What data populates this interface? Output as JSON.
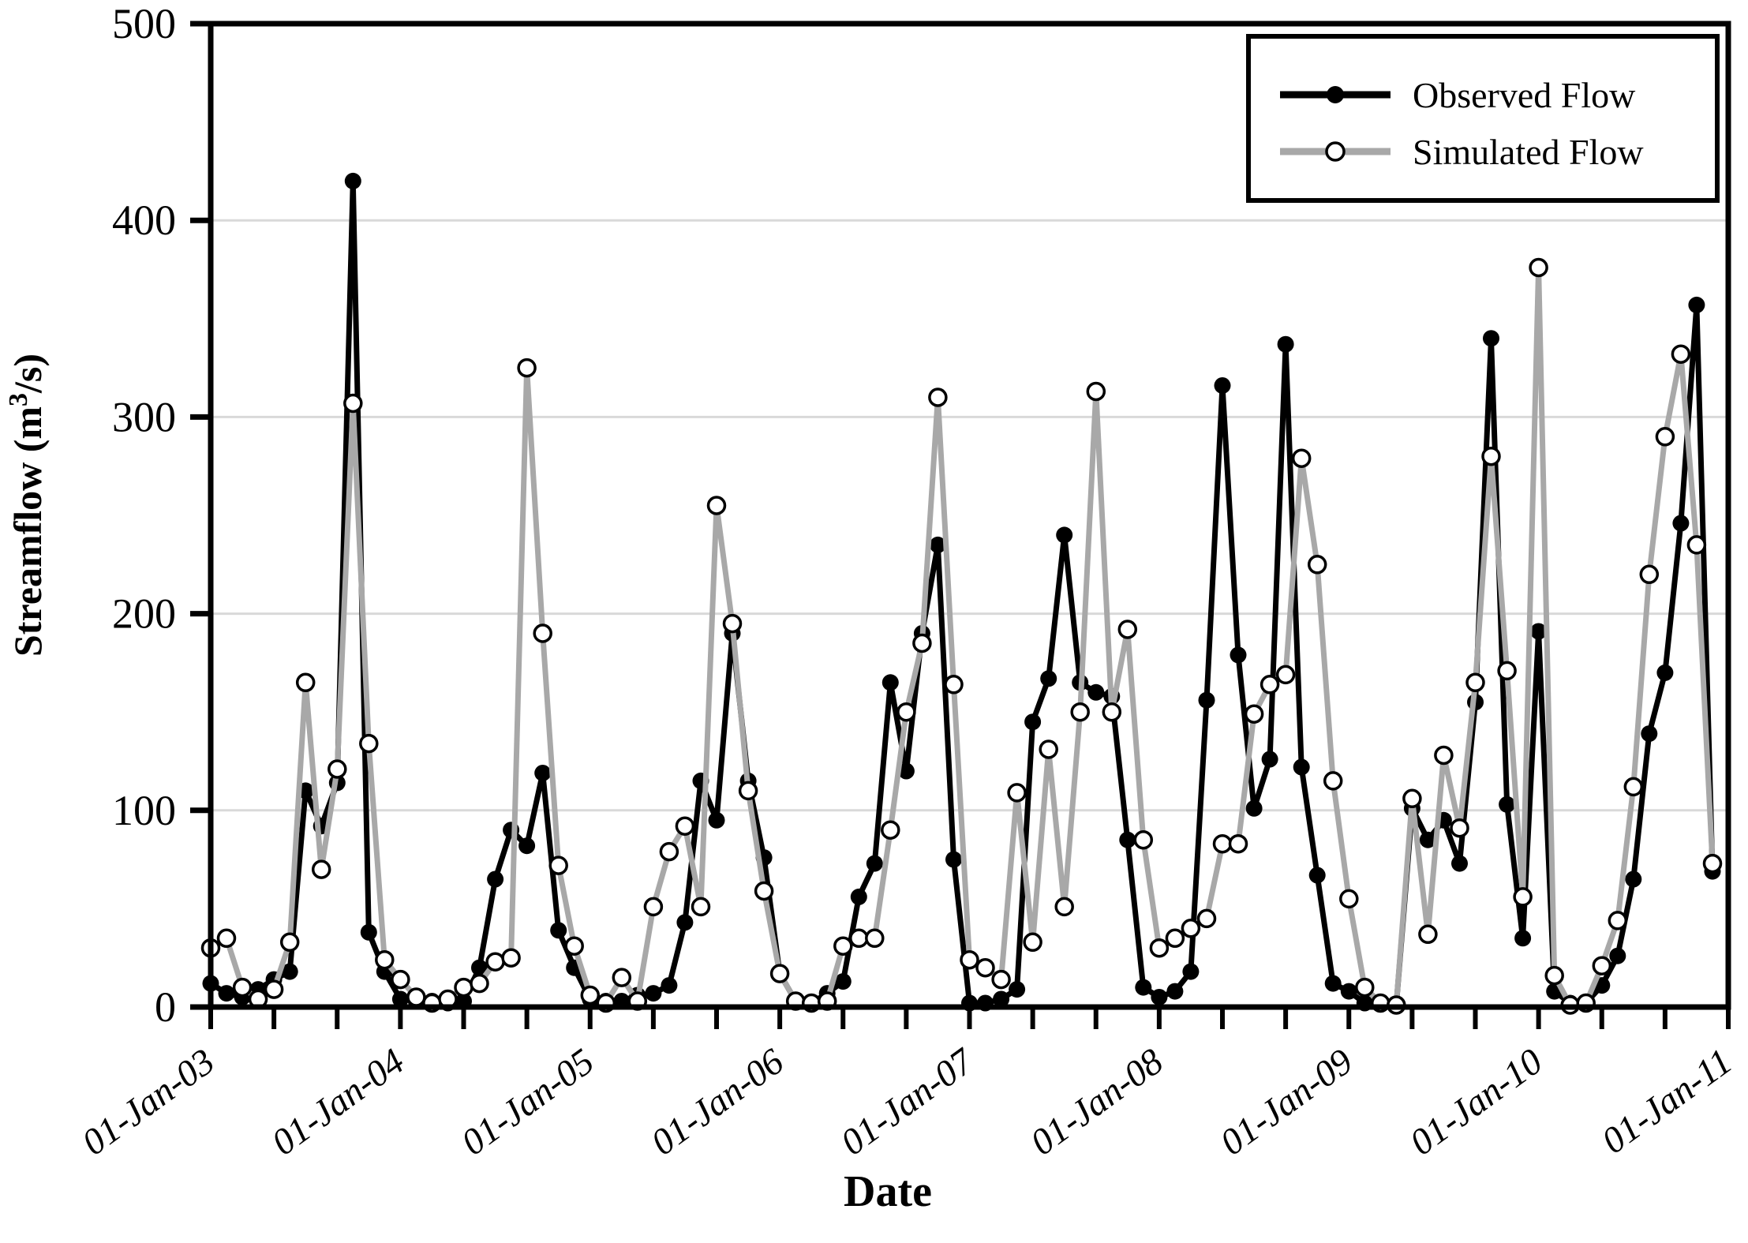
{
  "chart_data": {
    "type": "line",
    "title": "",
    "xlabel": "Date",
    "ylabel_prefix": "Streamflow (m",
    "ylabel_sup": "3",
    "ylabel_suffix": "/s)",
    "ylabel_full": "Streamflow (m³/s)",
    "ylim": [
      0,
      500
    ],
    "y_ticks": [
      "0",
      "100",
      "200",
      "300",
      "400",
      "500"
    ],
    "x_tick_labels": [
      "01-Jan-03",
      "01-Jan-04",
      "01-Jan-05",
      "01-Jan-06",
      "01-Jan-07",
      "01-Jan-08",
      "01-Jan-09",
      "01-Jan-10",
      "01-Jan-11"
    ],
    "x_minor_tick_every_months": 4,
    "x_start_month": "Jan-2003",
    "x_end_month": "Dec-2010",
    "points_per_series": 96,
    "grid": "horizontal-only",
    "legend_position": "top-right",
    "series": [
      {
        "name": "Observed Flow",
        "color": "#000000",
        "marker": "filled-circle",
        "values": [
          12,
          7,
          5,
          9,
          14,
          18,
          110,
          92,
          114,
          420,
          38,
          18,
          4,
          3,
          3,
          2,
          3,
          20,
          65,
          90,
          82,
          119,
          39,
          20,
          4,
          3,
          3,
          6,
          7,
          11,
          43,
          115,
          95,
          190,
          115,
          76,
          17,
          3,
          2,
          7,
          13,
          56,
          73,
          165,
          120,
          190,
          235,
          75,
          2,
          2,
          4,
          9,
          145,
          167,
          240,
          165,
          160,
          158,
          85,
          10,
          5,
          8,
          18,
          156,
          316,
          179,
          101,
          126,
          337,
          122,
          67,
          12,
          8,
          2,
          2,
          1,
          101,
          85,
          95,
          73,
          155,
          340,
          103,
          35,
          191,
          8,
          2,
          2,
          11,
          26,
          65,
          139,
          170,
          246,
          357,
          69
        ]
      },
      {
        "name": "Simulated Flow",
        "color": "#a8a8a8",
        "marker": "open-circle",
        "values": [
          30,
          35,
          10,
          4,
          9,
          33,
          165,
          70,
          121,
          307,
          134,
          24,
          14,
          5,
          2,
          4,
          10,
          12,
          23,
          25,
          325,
          190,
          72,
          31,
          6,
          2,
          15,
          3,
          51,
          79,
          92,
          51,
          255,
          195,
          110,
          59,
          17,
          3,
          2,
          3,
          31,
          35,
          35,
          90,
          150,
          185,
          310,
          164,
          24,
          20,
          14,
          109,
          33,
          131,
          51,
          150,
          313,
          150,
          192,
          85,
          30,
          35,
          40,
          45,
          83,
          83,
          149,
          164,
          169,
          279,
          225,
          115,
          55,
          10,
          2,
          1,
          106,
          37,
          128,
          91,
          165,
          280,
          171,
          56,
          376,
          16,
          1,
          2,
          21,
          44,
          112,
          220,
          290,
          332,
          235,
          73
        ]
      }
    ]
  },
  "colors": {
    "observed": "#000000",
    "simulated": "#a8a8a8",
    "gridline": "#d9d9d9",
    "frame": "#000000",
    "background": "#ffffff"
  }
}
